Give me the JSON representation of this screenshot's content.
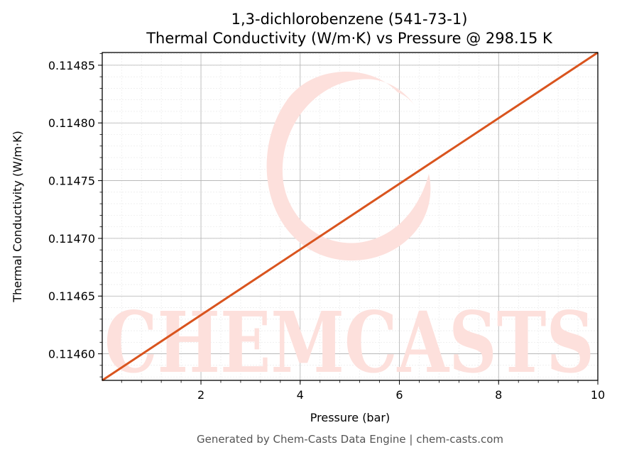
{
  "chart_data": {
    "type": "line",
    "title_line1": "1,3-dichlorobenzene (541-73-1)",
    "title_line2": "Thermal Conductivity (W/m·K) vs Pressure @ 298.15 K",
    "xlabel": "Pressure (bar)",
    "ylabel": "Thermal Conductivity (W/m·K)",
    "xlim": [
      0.01,
      10
    ],
    "ylim": [
      0.114577,
      0.114861
    ],
    "x_ticks": [
      2,
      4,
      6,
      8,
      10
    ],
    "y_ticks": [
      0.1146,
      0.11465,
      0.1147,
      0.11475,
      0.1148,
      0.11485
    ],
    "y_tick_labels": [
      "0.11460",
      "0.11465",
      "0.11470",
      "0.11475",
      "0.11480",
      "0.11485"
    ],
    "grid": true,
    "series": [
      {
        "color": "#d9541e",
        "x": [
          0.01,
          10
        ],
        "y": [
          0.114577,
          0.114861
        ]
      }
    ]
  },
  "watermark": {
    "text": "CHEMCASTS",
    "color": "#fde0dc"
  },
  "footer": {
    "text": "Generated by Chem-Casts Data Engine | chem-casts.com"
  }
}
